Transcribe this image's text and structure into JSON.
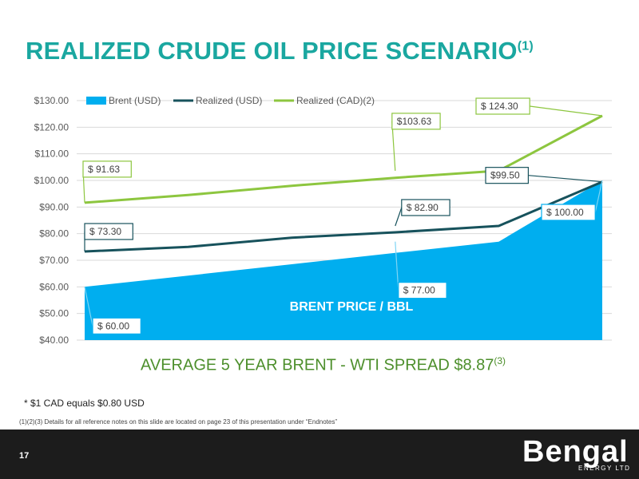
{
  "slide": {
    "title": "REALIZED CRUDE OIL PRICE SCENARIO",
    "title_sup": "(1)",
    "subtitle": "AVERAGE 5 YEAR BRENT - WTI SPREAD $8.87",
    "subtitle_sup": "(3)",
    "footnote_cad": "* $1 CAD equals $0.80 USD",
    "footnote_refs": "(1)(2)(3) Details for all reference notes on this slide are located on page 23 of this presentation under “Endnotes”",
    "page_number": "17"
  },
  "logo": {
    "name": "Bengal",
    "tagline": "ENERGY LTD"
  },
  "chart_data": {
    "type": "area",
    "x": [
      0,
      1,
      2,
      3,
      4,
      5
    ],
    "ylim": [
      40,
      130
    ],
    "yticks": [
      "$40.00",
      "$50.00",
      "$60.00",
      "$70.00",
      "$80.00",
      "$90.00",
      "$100.00",
      "$110.00",
      "$120.00",
      "$130.00"
    ],
    "grid": true,
    "legend_position": "top",
    "series": [
      {
        "name": "Brent (USD)",
        "kind": "area",
        "color": "#00aeef",
        "values": [
          60.0,
          64.25,
          68.5,
          72.75,
          77.0,
          100.0
        ]
      },
      {
        "name": "Realized (USD)",
        "kind": "line",
        "color": "#17525c",
        "values": [
          73.3,
          75.0,
          78.5,
          80.5,
          82.9,
          99.5
        ]
      },
      {
        "name": "Realized (CAD)(2)",
        "kind": "line",
        "color": "#8dc63f",
        "values": [
          91.63,
          94.5,
          98.0,
          101.0,
          103.63,
          124.3
        ]
      }
    ],
    "annotations": [
      {
        "text": "$ 124.30",
        "series": "Realized (CAD)(2)",
        "x": 5,
        "y": 124.3
      },
      {
        "text": "$103.63",
        "series": "Realized (CAD)(2)",
        "x": 3,
        "y": 103.63
      },
      {
        "text": "$ 91.63",
        "series": "Realized (CAD)(2)",
        "x": 0,
        "y": 91.63
      },
      {
        "text": "$99.50",
        "series": "Realized (USD)",
        "x": 5,
        "y": 99.5
      },
      {
        "text": "$ 82.90",
        "series": "Realized (USD)",
        "x": 3,
        "y": 82.9
      },
      {
        "text": "$ 73.30",
        "series": "Realized (USD)",
        "x": 0,
        "y": 73.3
      },
      {
        "text": "$ 100.00",
        "series": "Brent (USD)",
        "x": 5,
        "y": 100.0
      },
      {
        "text": "$ 77.00",
        "series": "Brent (USD)",
        "x": 3,
        "y": 77.0
      },
      {
        "text": "$ 60.00",
        "series": "Brent (USD)",
        "x": 0,
        "y": 60.0
      }
    ],
    "area_label": "BRENT PRICE / BBL"
  }
}
